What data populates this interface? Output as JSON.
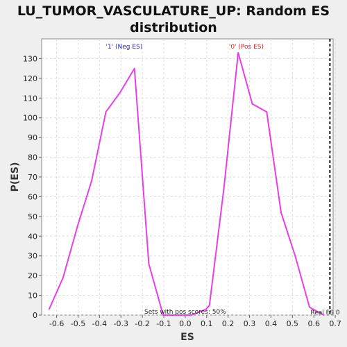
{
  "chart_data": {
    "type": "line",
    "title_line1": "LU_TUMOR_VASCULATURE_UP: Random ES",
    "title_line2": "distribution",
    "xlabel": "ES",
    "ylabel": "P(ES)",
    "xlim": [
      -0.67,
      0.69
    ],
    "ylim": [
      0,
      140
    ],
    "x_ticks": [
      -0.6,
      -0.5,
      -0.4,
      -0.3,
      -0.2,
      -0.1,
      0.0,
      0.1,
      0.2,
      0.3,
      0.4,
      0.5,
      0.6,
      0.7
    ],
    "x_tick_labels": [
      "-0.6",
      "-0.5",
      "-0.4",
      "-0.3",
      "-0.2",
      "-0.1",
      "0.0",
      "0.1",
      "0.2",
      "0.3",
      "0.4",
      "0.5",
      "0.6",
      "0.7"
    ],
    "y_ticks": [
      0,
      10,
      20,
      30,
      40,
      50,
      60,
      70,
      80,
      90,
      100,
      110,
      120,
      130
    ],
    "y_tick_labels": [
      "0",
      "10",
      "20",
      "30",
      "40",
      "50",
      "60",
      "70",
      "80",
      "90",
      "100",
      "110",
      "120",
      "130"
    ],
    "grid": true,
    "line_color": "#e83ee8",
    "series": [
      {
        "x": [
          -0.635,
          -0.57,
          -0.503,
          -0.437,
          -0.37,
          -0.303,
          -0.237,
          -0.17,
          -0.103,
          -0.037,
          0.03,
          0.097,
          0.113,
          0.18,
          0.247,
          0.313,
          0.38,
          0.447,
          0.513,
          0.58,
          0.647
        ],
        "values": [
          3,
          19,
          45,
          68,
          103,
          113,
          125,
          26,
          0,
          0,
          0,
          3,
          5,
          64,
          133,
          107,
          103,
          52,
          30,
          4,
          0
        ]
      }
    ],
    "annotations": {
      "neg_label": "'1' (Neg ES)",
      "pos_label": "'0' (Pos ES)",
      "pos_scores": "Sets with pos scores: 50%",
      "real_es": "Real ES 0"
    },
    "real_es_value": 0.675,
    "colors": {
      "neg": "#2222cc",
      "pos": "#dd2222",
      "marker": "#111111"
    }
  }
}
